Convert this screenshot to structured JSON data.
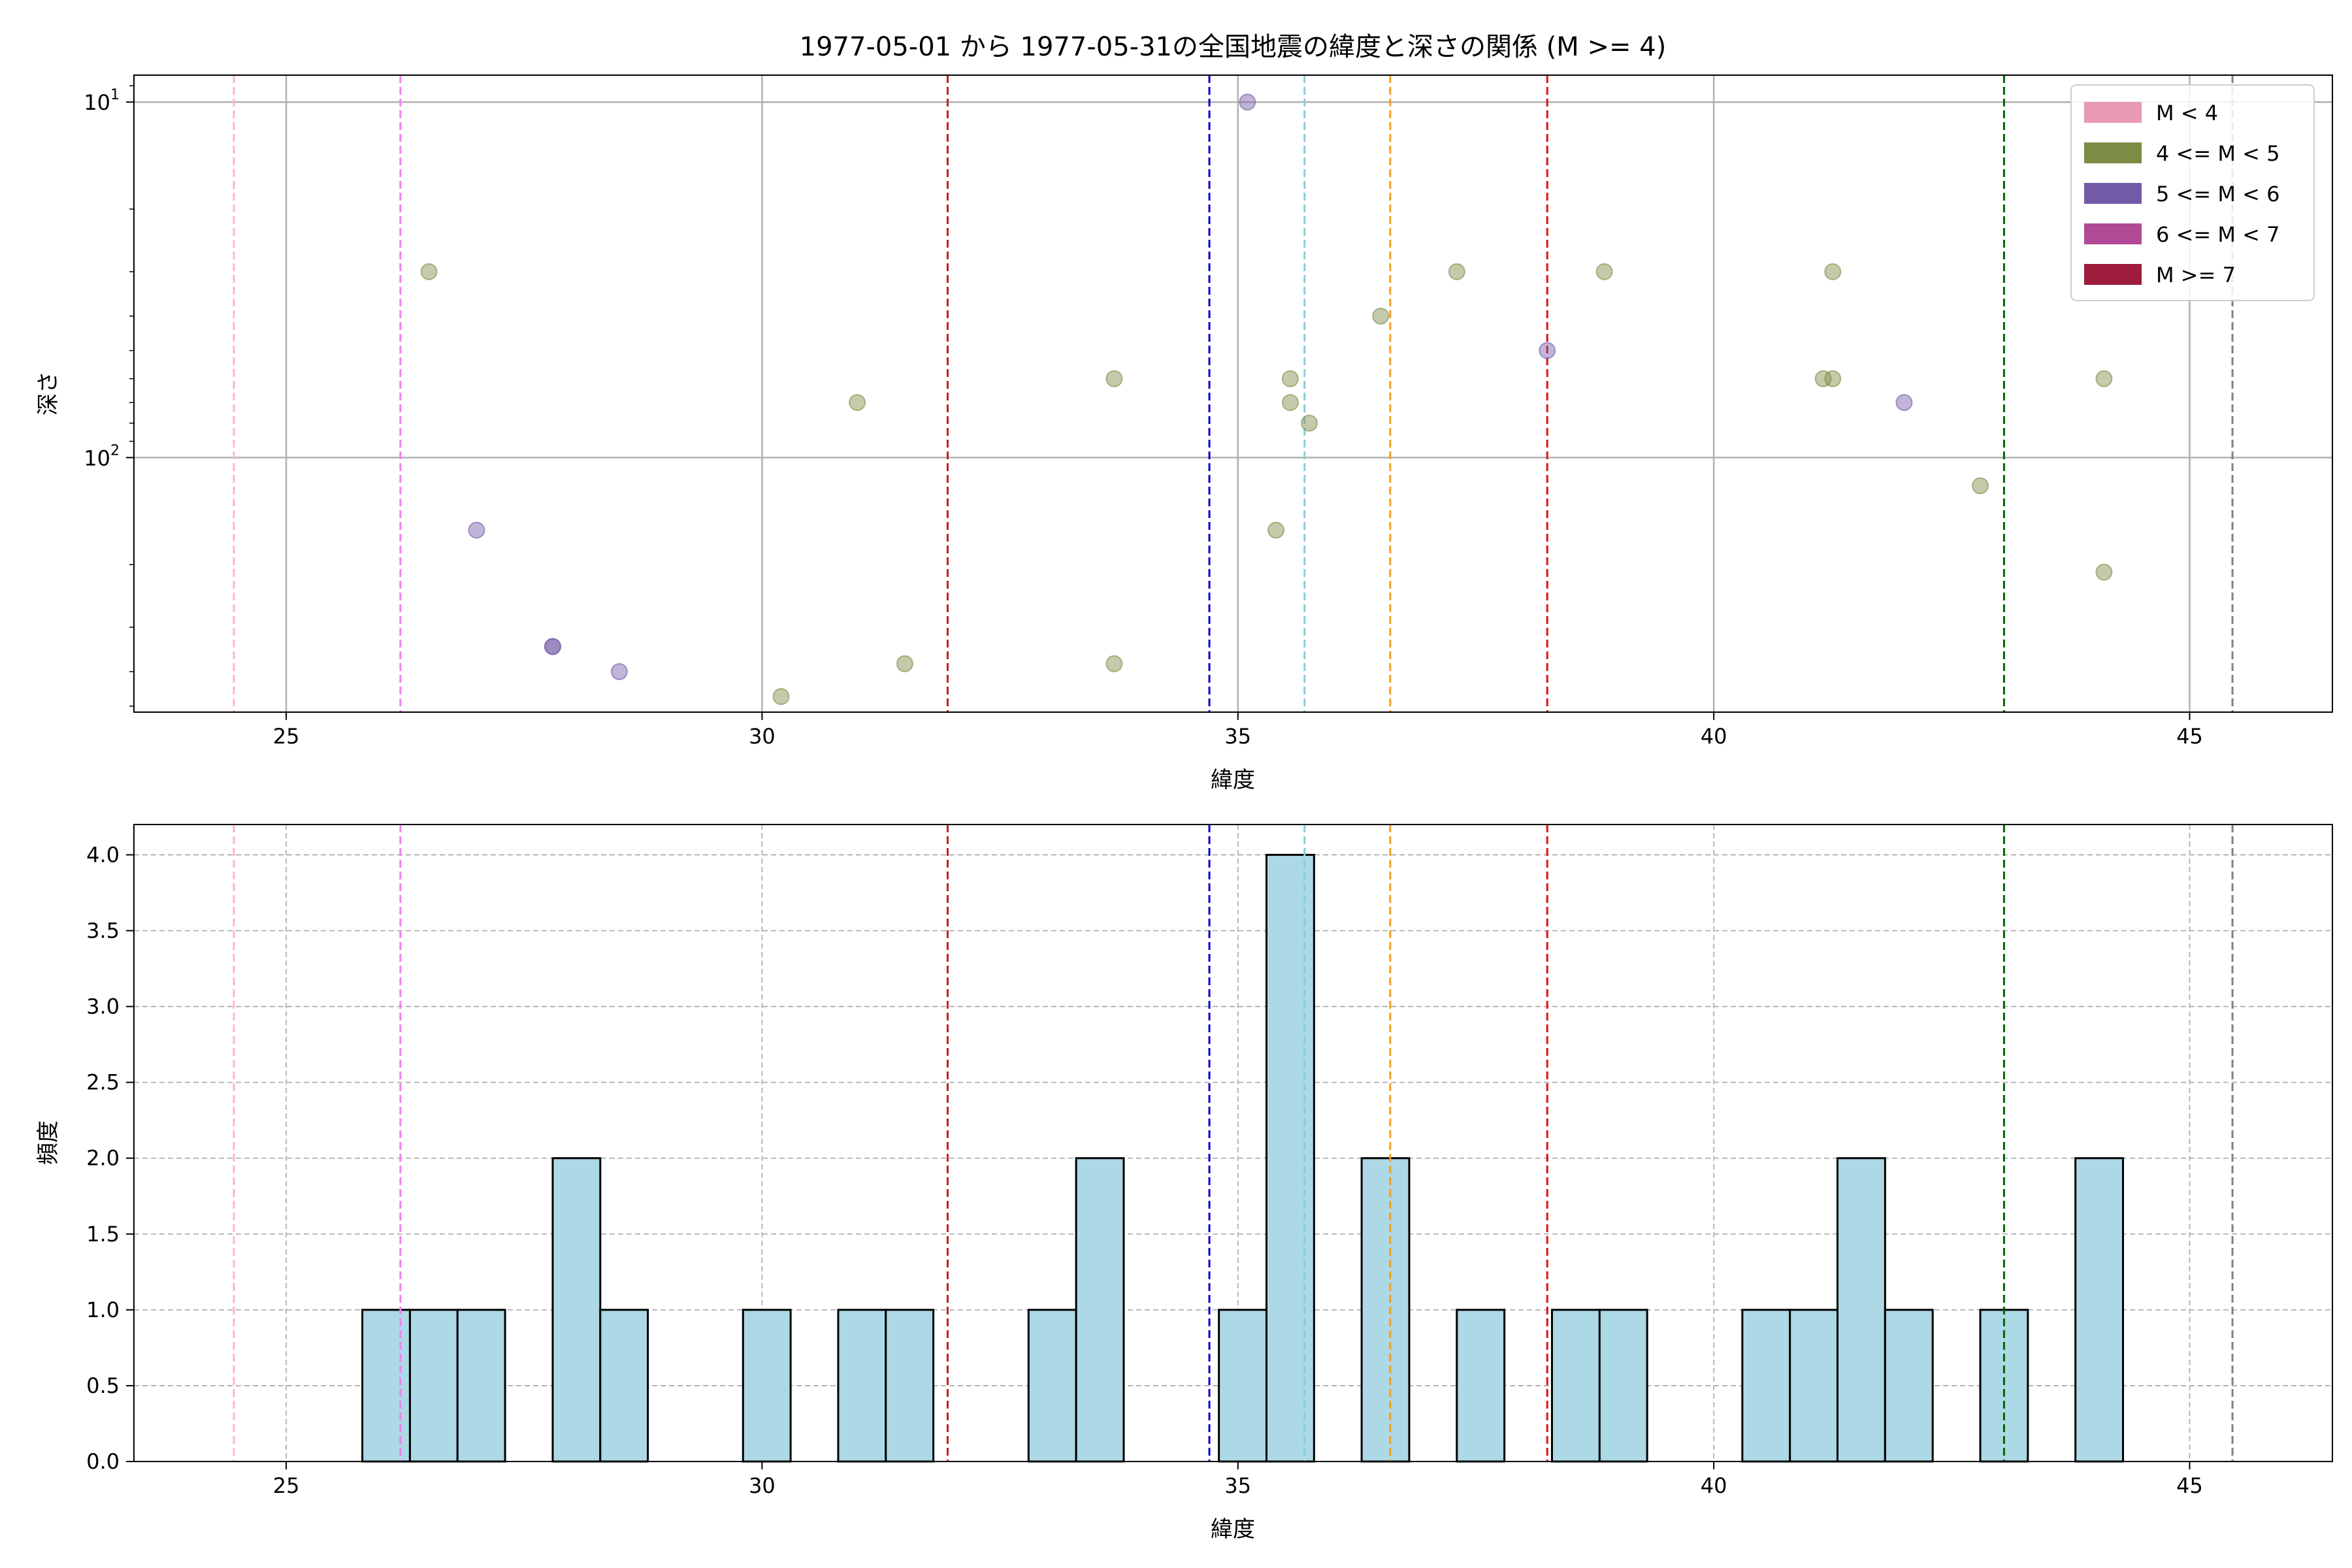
{
  "title": "1977-05-01 から 1977-05-31の全国地震の緯度と深さの関係 (M >= 4)",
  "chart_data": [
    {
      "type": "scatter",
      "name": "depth-vs-latitude",
      "xlabel": "緯度",
      "ylabel": "深さ",
      "xlim": [
        23.4,
        46.5
      ],
      "ylim": [
        520,
        8.4
      ],
      "yscale": "log",
      "y_inverted": true,
      "x_ticks": [
        25,
        30,
        35,
        40,
        45
      ],
      "y_ticks": [
        {
          "value": 10,
          "label": "10",
          "exp": "1"
        },
        {
          "value": 100,
          "label": "10",
          "exp": "2"
        }
      ],
      "grid": true,
      "legend": {
        "placement": "top-right",
        "entries": [
          {
            "label": "M < 4",
            "color": "#e899b3"
          },
          {
            "label": "4 <= M < 5",
            "color": "#7d8c45"
          },
          {
            "label": "5 <= M < 6",
            "color": "#735aa8"
          },
          {
            "label": "6 <= M < 7",
            "color": "#b04a96"
          },
          {
            "label": "M >= 7",
            "color": "#9e1c3c"
          }
        ]
      },
      "points": [
        {
          "x": 26.5,
          "y": 30,
          "class": "4 <= M < 5"
        },
        {
          "x": 27.0,
          "y": 160,
          "class": "5 <= M < 6"
        },
        {
          "x": 27.8,
          "y": 340,
          "class": "5 <= M < 6"
        },
        {
          "x": 27.8,
          "y": 340,
          "class": "5 <= M < 6"
        },
        {
          "x": 28.5,
          "y": 400,
          "class": "5 <= M < 6"
        },
        {
          "x": 30.2,
          "y": 470,
          "class": "4 <= M < 5"
        },
        {
          "x": 31.0,
          "y": 70,
          "class": "4 <= M < 5"
        },
        {
          "x": 31.5,
          "y": 380,
          "class": "4 <= M < 5"
        },
        {
          "x": 33.7,
          "y": 60,
          "class": "4 <= M < 5"
        },
        {
          "x": 33.7,
          "y": 380,
          "class": "4 <= M < 5"
        },
        {
          "x": 35.1,
          "y": 10,
          "class": "5 <= M < 6"
        },
        {
          "x": 35.4,
          "y": 160,
          "class": "4 <= M < 5"
        },
        {
          "x": 35.55,
          "y": 60,
          "class": "4 <= M < 5"
        },
        {
          "x": 35.55,
          "y": 70,
          "class": "4 <= M < 5"
        },
        {
          "x": 35.75,
          "y": 80,
          "class": "4 <= M < 5"
        },
        {
          "x": 36.5,
          "y": 40,
          "class": "4 <= M < 5"
        },
        {
          "x": 37.3,
          "y": 30,
          "class": "4 <= M < 5"
        },
        {
          "x": 38.25,
          "y": 50,
          "class": "5 <= M < 6"
        },
        {
          "x": 38.85,
          "y": 30,
          "class": "4 <= M < 5"
        },
        {
          "x": 41.15,
          "y": 60,
          "class": "4 <= M < 5"
        },
        {
          "x": 41.25,
          "y": 30,
          "class": "4 <= M < 5"
        },
        {
          "x": 41.25,
          "y": 60,
          "class": "4 <= M < 5"
        },
        {
          "x": 42.0,
          "y": 70,
          "class": "5 <= M < 6"
        },
        {
          "x": 42.8,
          "y": 120,
          "class": "4 <= M < 5"
        },
        {
          "x": 44.1,
          "y": 60,
          "class": "4 <= M < 5"
        },
        {
          "x": 44.1,
          "y": 210,
          "class": "4 <= M < 5"
        }
      ]
    },
    {
      "type": "bar",
      "name": "latitude-histogram",
      "xlabel": "緯度",
      "ylabel": "頻度",
      "xlim": [
        23.4,
        46.5
      ],
      "ylim": [
        0,
        4.2
      ],
      "x_ticks": [
        25,
        30,
        35,
        40,
        45
      ],
      "y_ticks": [
        {
          "value": 0,
          "label": "0.0"
        },
        {
          "value": 0.5,
          "label": "0.5"
        },
        {
          "value": 1,
          "label": "1.0"
        },
        {
          "value": 1.5,
          "label": "1.5"
        },
        {
          "value": 2,
          "label": "2.0"
        },
        {
          "value": 2.5,
          "label": "2.5"
        },
        {
          "value": 3,
          "label": "3.0"
        },
        {
          "value": 3.5,
          "label": "3.5"
        },
        {
          "value": 4,
          "label": "4.0"
        }
      ],
      "grid": true,
      "bar_color": "#add8e6",
      "bin_width": 0.5,
      "bins": [
        {
          "x0": 25.8,
          "count": 1
        },
        {
          "x0": 26.3,
          "count": 1
        },
        {
          "x0": 26.8,
          "count": 1
        },
        {
          "x0": 27.8,
          "count": 2
        },
        {
          "x0": 28.3,
          "count": 1
        },
        {
          "x0": 29.8,
          "count": 1
        },
        {
          "x0": 30.8,
          "count": 1
        },
        {
          "x0": 31.3,
          "count": 1
        },
        {
          "x0": 32.8,
          "count": 1
        },
        {
          "x0": 33.3,
          "count": 2
        },
        {
          "x0": 34.8,
          "count": 1
        },
        {
          "x0": 35.3,
          "count": 4
        },
        {
          "x0": 36.3,
          "count": 2
        },
        {
          "x0": 37.3,
          "count": 1
        },
        {
          "x0": 38.3,
          "count": 1
        },
        {
          "x0": 38.8,
          "count": 1
        },
        {
          "x0": 40.3,
          "count": 1
        },
        {
          "x0": 40.8,
          "count": 1
        },
        {
          "x0": 41.3,
          "count": 2
        },
        {
          "x0": 41.8,
          "count": 1
        },
        {
          "x0": 42.8,
          "count": 1
        },
        {
          "x0": 43.8,
          "count": 2
        }
      ]
    }
  ],
  "reference_lines": [
    {
      "x": 24.45,
      "color": "#ffb6c1"
    },
    {
      "x": 26.2,
      "color": "#ee82ee"
    },
    {
      "x": 31.95,
      "color": "#c41e1e"
    },
    {
      "x": 34.7,
      "color": "#0000cd"
    },
    {
      "x": 35.7,
      "color": "#87cedb"
    },
    {
      "x": 36.6,
      "color": "#f0a020"
    },
    {
      "x": 38.25,
      "color": "#e01010"
    },
    {
      "x": 43.05,
      "color": "#006400"
    },
    {
      "x": 45.45,
      "color": "#808080"
    }
  ]
}
